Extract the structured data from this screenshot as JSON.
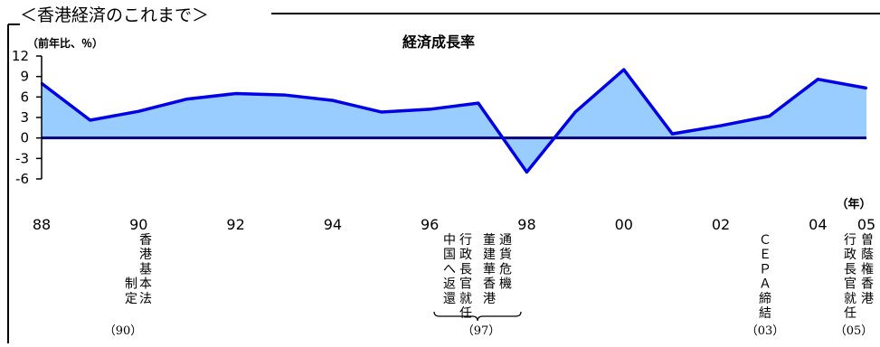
{
  "header": {
    "section_title": "＜香港経済のこれまで＞"
  },
  "chart_data": {
    "type": "area",
    "title": "経済成長率",
    "ylabel": "（前年比、％）",
    "xlabel": "（年）",
    "ylim": [
      -6,
      12
    ],
    "yticks": [
      12,
      9,
      6,
      3,
      0,
      -3,
      -6
    ],
    "xlim": [
      1988,
      2005
    ],
    "xticks": [
      {
        "year": 1988,
        "label": "88"
      },
      {
        "year": 1990,
        "label": "90"
      },
      {
        "year": 1992,
        "label": "92"
      },
      {
        "year": 1994,
        "label": "94"
      },
      {
        "year": 1996,
        "label": "96"
      },
      {
        "year": 1998,
        "label": "98"
      },
      {
        "year": 2000,
        "label": "00"
      },
      {
        "year": 2002,
        "label": "02"
      },
      {
        "year": 2004,
        "label": "04"
      },
      {
        "year": 2005,
        "label": "05"
      }
    ],
    "x": [
      1988,
      1989,
      1990,
      1991,
      1992,
      1993,
      1994,
      1995,
      1996,
      1997,
      1998,
      1999,
      2000,
      2001,
      2002,
      2003,
      2004,
      2005
    ],
    "series": [
      {
        "values": [
          8.0,
          2.6,
          3.9,
          5.7,
          6.5,
          6.3,
          5.5,
          3.8,
          4.2,
          5.1,
          -5.0,
          3.8,
          10.0,
          0.6,
          1.8,
          3.2,
          8.6,
          7.3
        ]
      }
    ],
    "line_color": "#0000e6",
    "fill_color": "#99ccff",
    "grid": false,
    "annotations": [
      {
        "year": 1990,
        "lines": [
          "香",
          "港",
          "基",
          "本",
          "法"
        ],
        "line2": [
          "",
          "",
          "",
          "制",
          "定"
        ],
        "year_label": "（90）"
      },
      {
        "year": 1997,
        "columns": [
          [
            "通",
            "貨",
            "危",
            "機"
          ],
          [
            "董",
            "建",
            "華",
            "香",
            "港"
          ],
          [
            "行",
            "政",
            "長",
            "官",
            "就",
            "任"
          ],
          [
            "中",
            "国",
            "へ",
            "返",
            "還"
          ]
        ],
        "year_label": "（97）"
      },
      {
        "year": 2003,
        "columns": [
          [
            "Ｃ",
            "Ｅ",
            "Ｐ",
            "Ａ",
            "締",
            "結"
          ]
        ],
        "year_label": "（03）"
      },
      {
        "year": 2005,
        "columns": [
          [
            "曽",
            "蔭",
            "権",
            "香",
            "港"
          ],
          [
            "行",
            "政",
            "長",
            "官",
            "就",
            "任"
          ]
        ],
        "year_label": "（05）"
      }
    ]
  }
}
